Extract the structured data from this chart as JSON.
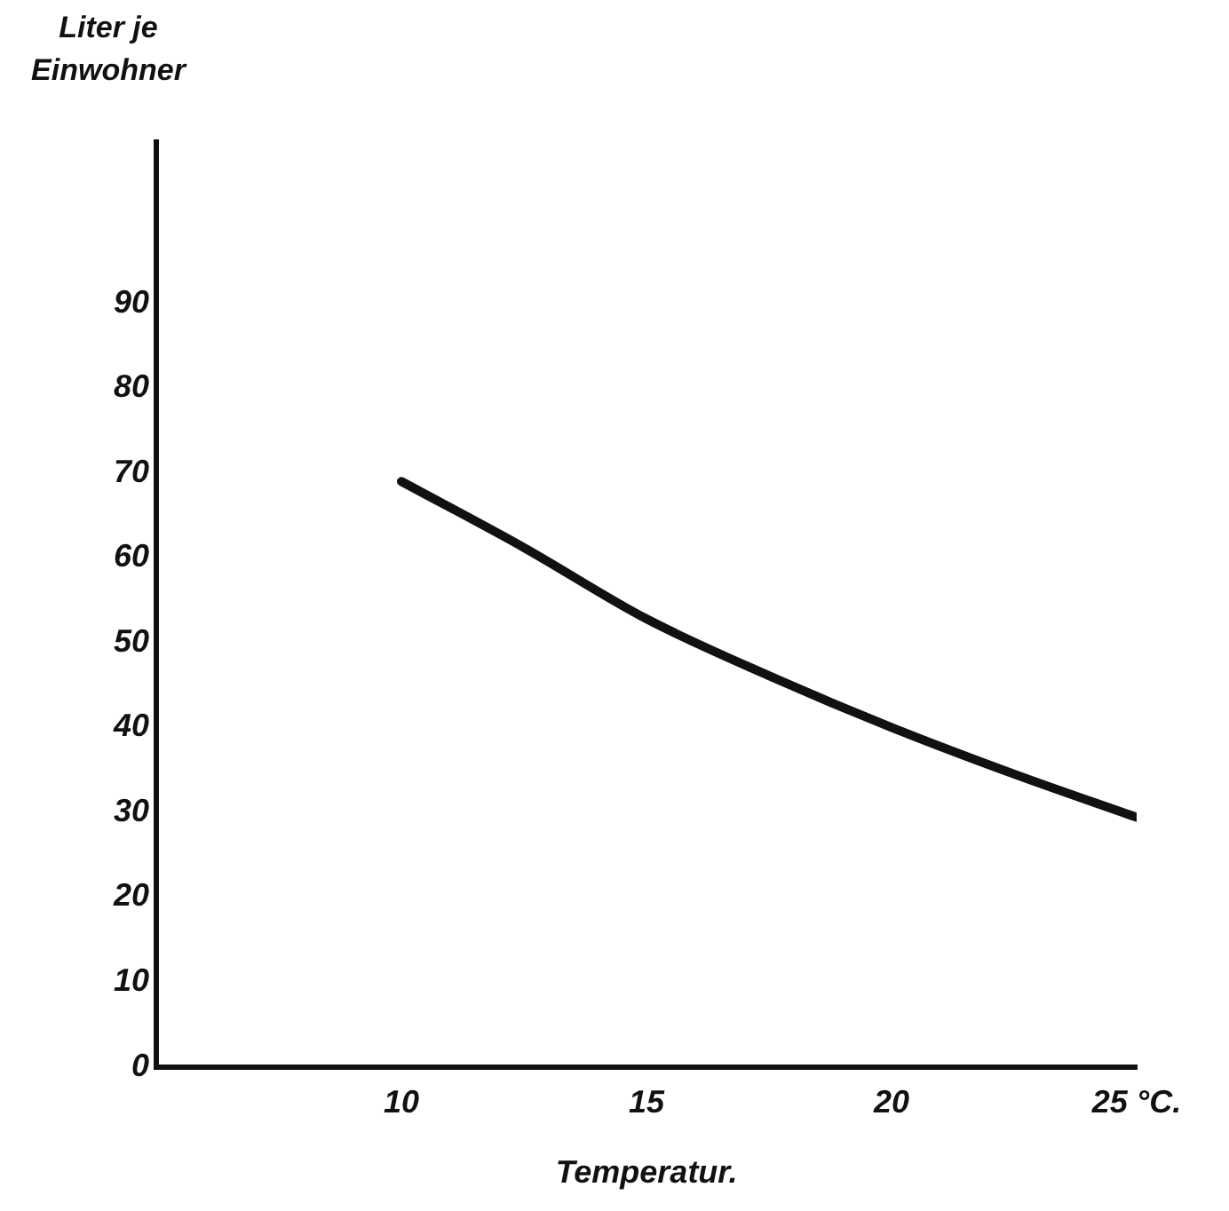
{
  "chart_data": {
    "type": "line",
    "xlabel": "Temperatur.",
    "ylabel": "Liter je Einwohner",
    "x": [
      10,
      12.5,
      15,
      17.5,
      20,
      22.5,
      25
    ],
    "series": [
      {
        "color": "#111111",
        "values": [
          69,
          61.2,
          52.8,
          46.1,
          40,
          34.5,
          29.4
        ]
      }
    ],
    "xlim": [
      5,
      25
    ],
    "xticks": [
      10,
      15,
      20,
      {
        "value": 25,
        "label": "25 °C."
      }
    ],
    "ylim": [
      0,
      109
    ],
    "yticks": [
      0,
      10,
      20,
      30,
      40,
      50,
      60,
      70,
      80,
      90
    ],
    "grid": false,
    "legend": false,
    "marker": "none",
    "line_style": "solid"
  }
}
